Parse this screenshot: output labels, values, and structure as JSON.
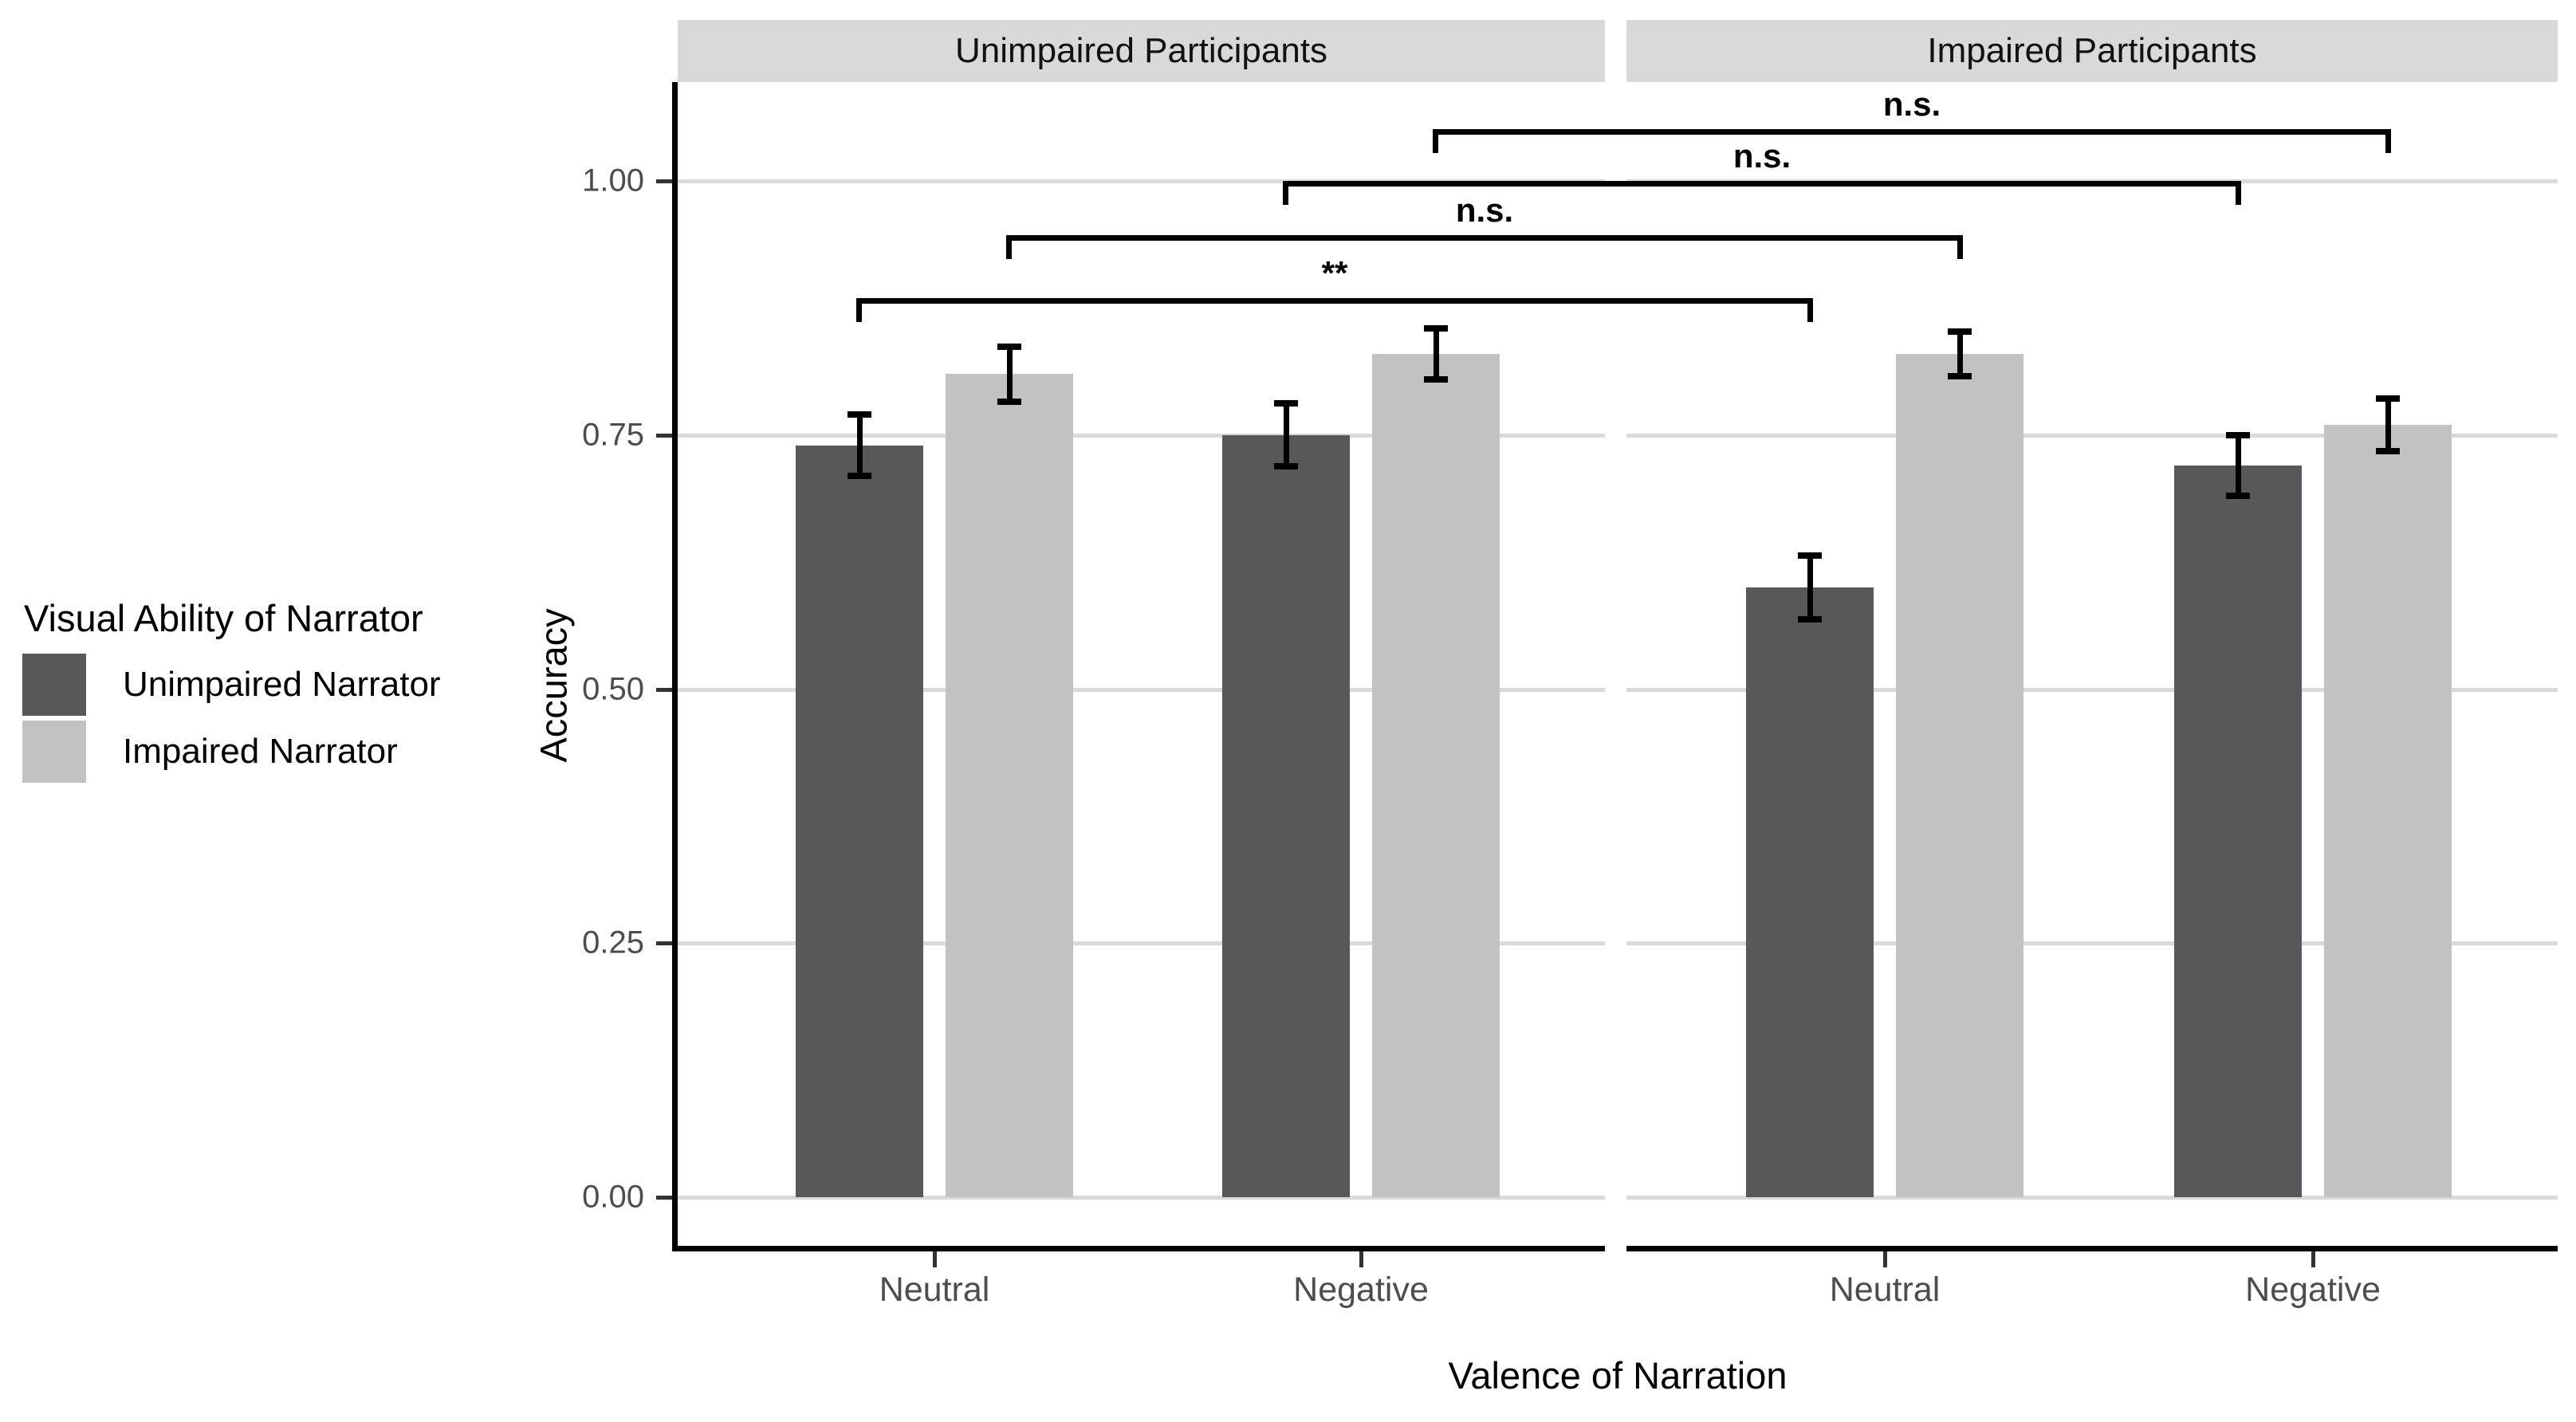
{
  "chart_data": {
    "type": "bar",
    "title": "",
    "facet_titles": [
      "Unimpaired Participants",
      "Impaired Participants"
    ],
    "categories": [
      "Neutral",
      "Negative"
    ],
    "xlabel": "Valence of Narration",
    "ylabel": "Accuracy",
    "legend_title": "Visual Ability of Narrator",
    "legend_position": "left",
    "grid": "horizontal-major",
    "ylim": [
      -0.05,
      1.1
    ],
    "yticks": [
      {
        "value": 1.0,
        "label": "1.00"
      },
      {
        "value": 0.75,
        "label": "0.75"
      },
      {
        "value": 0.5,
        "label": "0.50"
      },
      {
        "value": 0.25,
        "label": "0.25"
      },
      {
        "value": 0.0,
        "label": "0.00"
      }
    ],
    "series": [
      {
        "name": "Unimpaired Narrator",
        "color": "#58585a",
        "values": [
          [
            0.74,
            0.75
          ],
          [
            0.6,
            0.72
          ]
        ],
        "errors": [
          [
            0.03,
            0.031
          ],
          [
            0.031,
            0.03
          ]
        ]
      },
      {
        "name": "Impaired Narrator",
        "color": "#c2c2c3",
        "values": [
          [
            0.81,
            0.83
          ],
          [
            0.83,
            0.76
          ]
        ],
        "errors": [
          [
            0.027,
            0.025
          ],
          [
            0.022,
            0.026
          ]
        ]
      }
    ],
    "significance": [
      {
        "label": "n.s.",
        "y": 1.051,
        "from": {
          "facet": 0,
          "category": 1,
          "series": 1
        },
        "to": {
          "facet": 1,
          "category": 1,
          "series": 1
        }
      },
      {
        "label": "n.s.",
        "y": 1.0,
        "from": {
          "facet": 0,
          "category": 1,
          "series": 0
        },
        "to": {
          "facet": 1,
          "category": 1,
          "series": 0
        }
      },
      {
        "label": "n.s.",
        "y": 0.947,
        "from": {
          "facet": 0,
          "category": 0,
          "series": 1
        },
        "to": {
          "facet": 1,
          "category": 0,
          "series": 1
        }
      },
      {
        "label": "**",
        "y": 0.885,
        "from": {
          "facet": 0,
          "category": 0,
          "series": 0
        },
        "to": {
          "facet": 1,
          "category": 0,
          "series": 0
        }
      }
    ],
    "colors": {
      "strip_background": "#d9d9d9",
      "gridline": "#d9d9d9",
      "axis_text": "#4d4d4d",
      "axis_line": "#000000",
      "plot_background": "#ffffff"
    }
  }
}
